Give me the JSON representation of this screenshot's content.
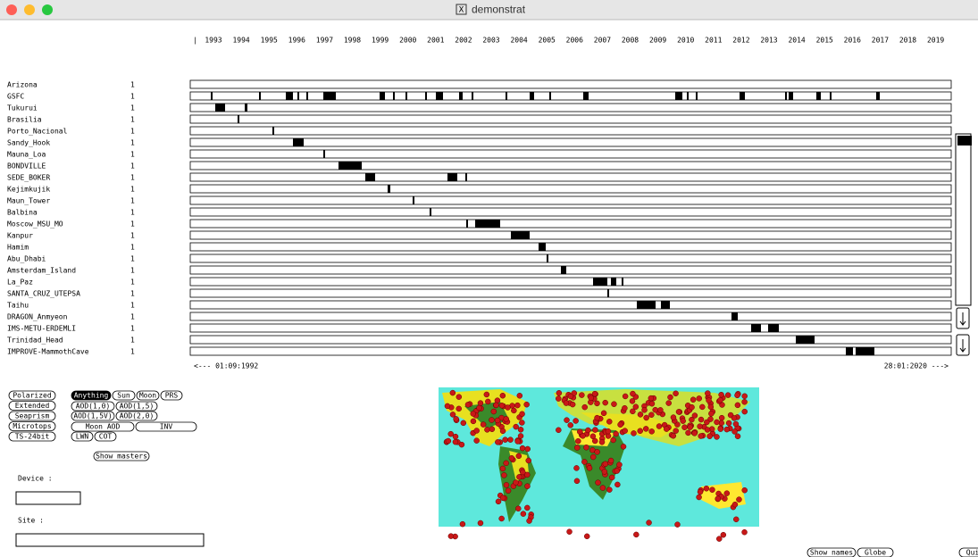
{
  "window": {
    "title": "demonstrat"
  },
  "timeline": {
    "years": [
      "1993",
      "1994",
      "1995",
      "1996",
      "1997",
      "1998",
      "1999",
      "2000",
      "2001",
      "2002",
      "2003",
      "2004",
      "2005",
      "2006",
      "2007",
      "2008",
      "2009",
      "2010",
      "2011",
      "2012",
      "2013",
      "2014",
      "2015",
      "2016",
      "2017",
      "2018",
      "2019"
    ],
    "sites": [
      {
        "name": "Arizona",
        "count": 1
      },
      {
        "name": "GSFC",
        "count": 1
      },
      {
        "name": "Tukurui",
        "count": 1
      },
      {
        "name": "Brasilia",
        "count": 1
      },
      {
        "name": "Porto_Nacional",
        "count": 1
      },
      {
        "name": "Sandy_Hook",
        "count": 1
      },
      {
        "name": "Mauna_Loa",
        "count": 1
      },
      {
        "name": "BONDVILLE",
        "count": 1
      },
      {
        "name": "SEDE_BOKER",
        "count": 1
      },
      {
        "name": "Kejimkujik",
        "count": 1
      },
      {
        "name": "Maun_Tower",
        "count": 1
      },
      {
        "name": "Balbina",
        "count": 1
      },
      {
        "name": "Moscow_MSU_MO",
        "count": 1
      },
      {
        "name": "Kanpur",
        "count": 1
      },
      {
        "name": "Hamim",
        "count": 1
      },
      {
        "name": "Abu_Dhabi",
        "count": 1
      },
      {
        "name": "Amsterdam_Island",
        "count": 1
      },
      {
        "name": "La_Paz",
        "count": 1
      },
      {
        "name": "SANTA_CRUZ_UTEPSA",
        "count": 1
      },
      {
        "name": "Taihu",
        "count": 1
      },
      {
        "name": "DRAGON_Anmyeon",
        "count": 1
      },
      {
        "name": "IMS-METU-ERDEMLI",
        "count": 1
      },
      {
        "name": "Trinidad_Head",
        "count": 1
      },
      {
        "name": "IMPROVE-MammothCave",
        "count": 1
      }
    ],
    "start_label": "<--- 01:09:1992",
    "end_label": "28:01:2020 --->"
  },
  "controls": {
    "instrument_buttons": [
      "Polarized",
      "Extended",
      "Seaprism",
      "Microtops",
      "TS-24bit"
    ],
    "product_buttons": [
      "Anything",
      "Sun",
      "Moon",
      "PRS",
      "AOD(1,0)",
      "AOD(1,5)",
      "AOD(1,5V)",
      "AOD(2,0)",
      "Moon AOD",
      "INV",
      "LWN",
      "COT"
    ],
    "show_masters": "Show masters",
    "device_label": "Device :",
    "site_label": "Site :",
    "bottom_buttons": [
      "Show names",
      "Globe",
      "Qui"
    ]
  }
}
